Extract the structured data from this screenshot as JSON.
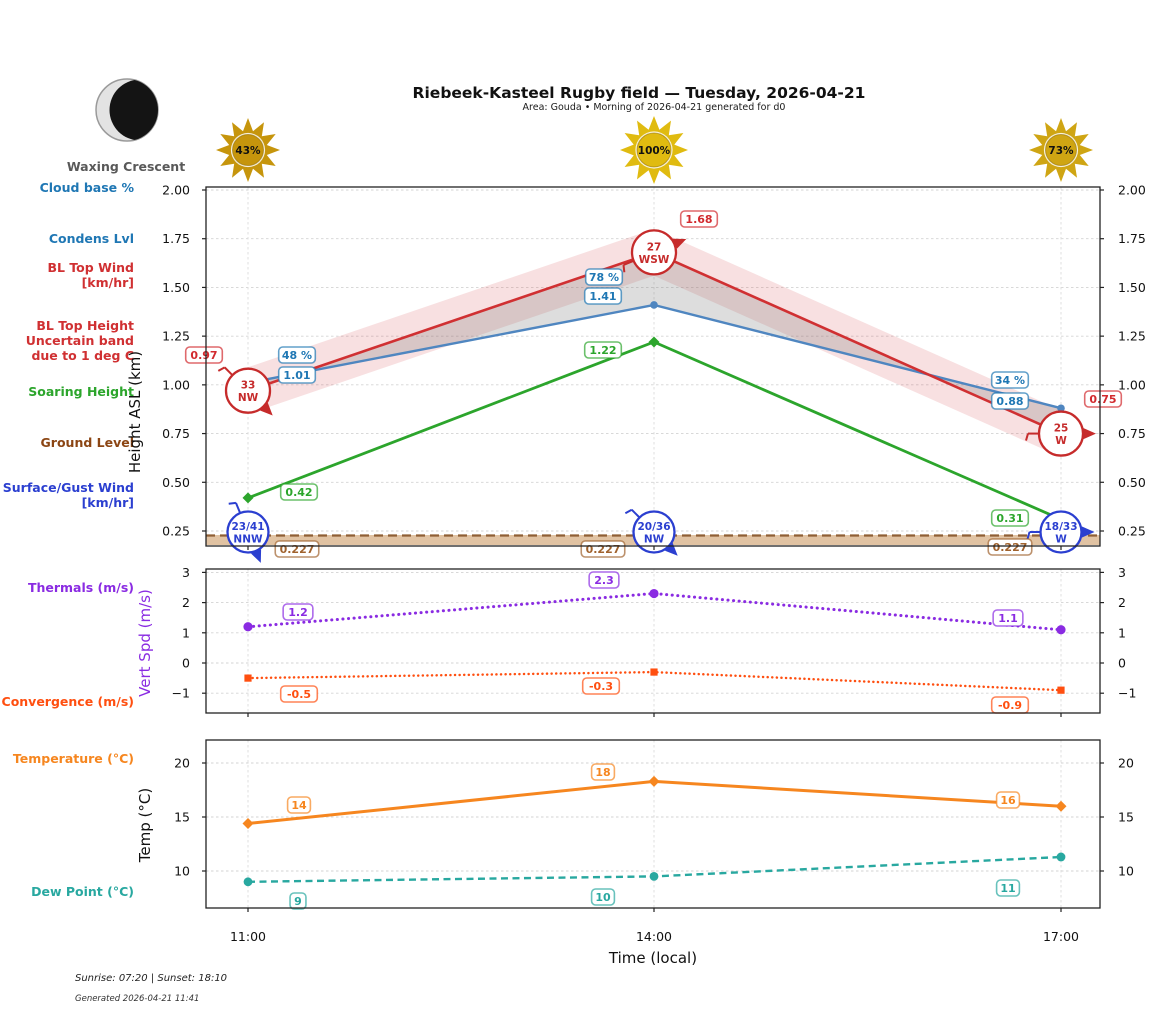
{
  "header": {
    "title": "Riebeek-Kasteel Rugby field — Tuesday, 2026-04-21",
    "subtitle": "Area: Gouda • Morning of 2026-04-21 generated for d0"
  },
  "moon": {
    "phase_label": "Waxing Crescent"
  },
  "footer": {
    "sun_times": "Sunrise: 07:20 | Sunset: 18:10",
    "generated": "Generated 2026-04-21 11:41"
  },
  "colors": {
    "cloud_blue": "#1f77b4",
    "condens_line": "#4f86c0",
    "bl_red": "#d03032",
    "soaring_green": "#2ca52c",
    "ground_brown": "#a0622d",
    "ground_band": "#d9b48c",
    "surface_blue": "#2b3fd0",
    "thermals_purple": "#8a2be2",
    "convergence_orangered": "#ff4f10",
    "temperature_orange": "#f6861f",
    "dew_teal": "#28a8a0",
    "sun_gold_43": "#c6950c",
    "sun_gold_100": "#e0bb10",
    "sun_gold_73": "#cfa513",
    "frame": "#222222",
    "grid": "#d3d3d3"
  },
  "left_labels": [
    {
      "id": "cloud-base",
      "lines": [
        "Cloud base %"
      ],
      "color": "#1f77b4"
    },
    {
      "id": "condens-lvl",
      "lines": [
        "Condens Lvl"
      ],
      "color": "#1f77b4"
    },
    {
      "id": "bl-top-wind",
      "lines": [
        "BL Top Wind",
        "[km/hr]"
      ],
      "color": "#d03032"
    },
    {
      "id": "bl-top-height",
      "lines": [
        "BL Top Height",
        "Uncertain band",
        "due to 1 deg C"
      ],
      "color": "#d03032"
    },
    {
      "id": "soaring-height",
      "lines": [
        "Soaring Height"
      ],
      "color": "#2ca52c"
    },
    {
      "id": "ground-level",
      "lines": [
        "Ground Level"
      ],
      "color": "#8b4513"
    },
    {
      "id": "surface-gust-wind",
      "lines": [
        "Surface/Gust Wind",
        "[km/hr]"
      ],
      "color": "#2b3fd0"
    },
    {
      "id": "thermals",
      "lines": [
        "Thermals (m/s)"
      ],
      "color": "#8a2be2"
    },
    {
      "id": "convergence",
      "lines": [
        "Convergence (m/s)"
      ],
      "color": "#ff4f10"
    },
    {
      "id": "temperature",
      "lines": [
        "Temperature (°C)"
      ],
      "color": "#f6861f"
    },
    {
      "id": "dew-point",
      "lines": [
        "Dew Point (°C)"
      ],
      "color": "#28a8a0"
    }
  ],
  "chart_data": [
    {
      "type": "line",
      "title": "Boundary layer heights",
      "x_categories": [
        "11:00",
        "14:00",
        "17:00"
      ],
      "ylabel": "Height ASL (km)",
      "yticks": [
        "2.00",
        "1.75",
        "1.50",
        "1.25",
        "1.00",
        "0.75",
        "0.50",
        "0.25"
      ],
      "ylim": [
        0.17,
        2.02
      ],
      "sunshine_pct": [
        43,
        100,
        73
      ],
      "series": {
        "cloud_base_pct": {
          "labels": [
            "48 %",
            "78 %",
            "34 %"
          ],
          "values": [
            48,
            78,
            34
          ]
        },
        "condens_lvl_km": {
          "values": [
            1.01,
            1.41,
            0.88
          ]
        },
        "bl_top_km": {
          "values": [
            0.97,
            1.68,
            0.75
          ],
          "uncertainty_km": 0.12
        },
        "soaring_height_km": {
          "values": [
            0.42,
            1.22,
            0.31
          ]
        },
        "ground_level_km": {
          "value": 0.227
        },
        "bl_top_wind": [
          {
            "speed": "33",
            "dir": "NW"
          },
          {
            "speed": "27",
            "dir": "WSW"
          },
          {
            "speed": "25",
            "dir": "W"
          }
        ],
        "surface_gust_wind": [
          {
            "speed": "23/41",
            "dir": "NNW"
          },
          {
            "speed": "20/36",
            "dir": "NW"
          },
          {
            "speed": "18/33",
            "dir": "W"
          }
        ]
      }
    },
    {
      "type": "line",
      "title": "Vertical speeds",
      "x_categories": [
        "11:00",
        "14:00",
        "17:00"
      ],
      "ylabel": "Vert Spd (m/s)",
      "yticks": [
        "3",
        "2",
        "1",
        "0",
        "−1"
      ],
      "ylim": [
        -1.65,
        3.1
      ],
      "series": {
        "thermals_ms": {
          "values": [
            1.2,
            2.3,
            1.1
          ]
        },
        "convergence_ms": {
          "values": [
            -0.5,
            -0.3,
            -0.9
          ]
        }
      }
    },
    {
      "type": "line",
      "title": "Temperatures",
      "x_categories": [
        "11:00",
        "14:00",
        "17:00"
      ],
      "xlabel": "Time (local)",
      "ylabel": "Temp (°C)",
      "yticks": [
        "20",
        "15",
        "10"
      ],
      "ylim": [
        7.5,
        22.1
      ],
      "series": {
        "temperature_c": {
          "labels": [
            "14",
            "18",
            "16"
          ],
          "values": [
            14.4,
            18.3,
            16.0
          ]
        },
        "dew_point_c": {
          "labels": [
            "9",
            "10",
            "11"
          ],
          "values": [
            9.0,
            9.5,
            11.3
          ]
        }
      }
    }
  ]
}
